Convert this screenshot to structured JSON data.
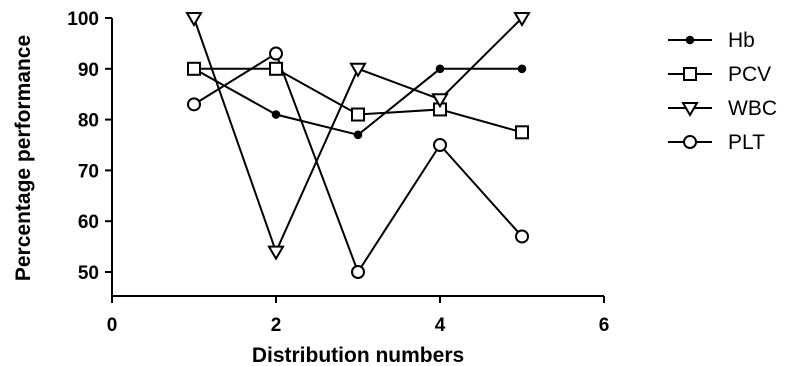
{
  "chart_data": {
    "type": "line",
    "title": "",
    "xlabel": "Distribution numbers",
    "ylabel": "Percentage performance",
    "xlim": [
      0,
      6
    ],
    "ylim": [
      45,
      100
    ],
    "x_ticks": [
      0,
      2,
      4,
      6
    ],
    "y_ticks": [
      50,
      60,
      70,
      80,
      90,
      100
    ],
    "grid": false,
    "legend_position": "right",
    "series": [
      {
        "name": "Hb",
        "marker": "filled-circle",
        "x": [
          1,
          2,
          3,
          4,
          5
        ],
        "values": [
          90,
          81,
          77,
          90,
          90
        ]
      },
      {
        "name": "PCV",
        "marker": "open-square",
        "x": [
          1,
          2,
          3,
          4,
          5
        ],
        "values": [
          90,
          90,
          81,
          82,
          77.5
        ]
      },
      {
        "name": "WBC",
        "marker": "open-triangle-down",
        "x": [
          1,
          2,
          3,
          4,
          5
        ],
        "values": [
          100,
          54,
          90,
          84,
          100
        ]
      },
      {
        "name": "PLT",
        "marker": "open-circle",
        "x": [
          1,
          2,
          3,
          4,
          5
        ],
        "values": [
          83,
          93,
          50,
          75,
          57
        ]
      }
    ]
  }
}
